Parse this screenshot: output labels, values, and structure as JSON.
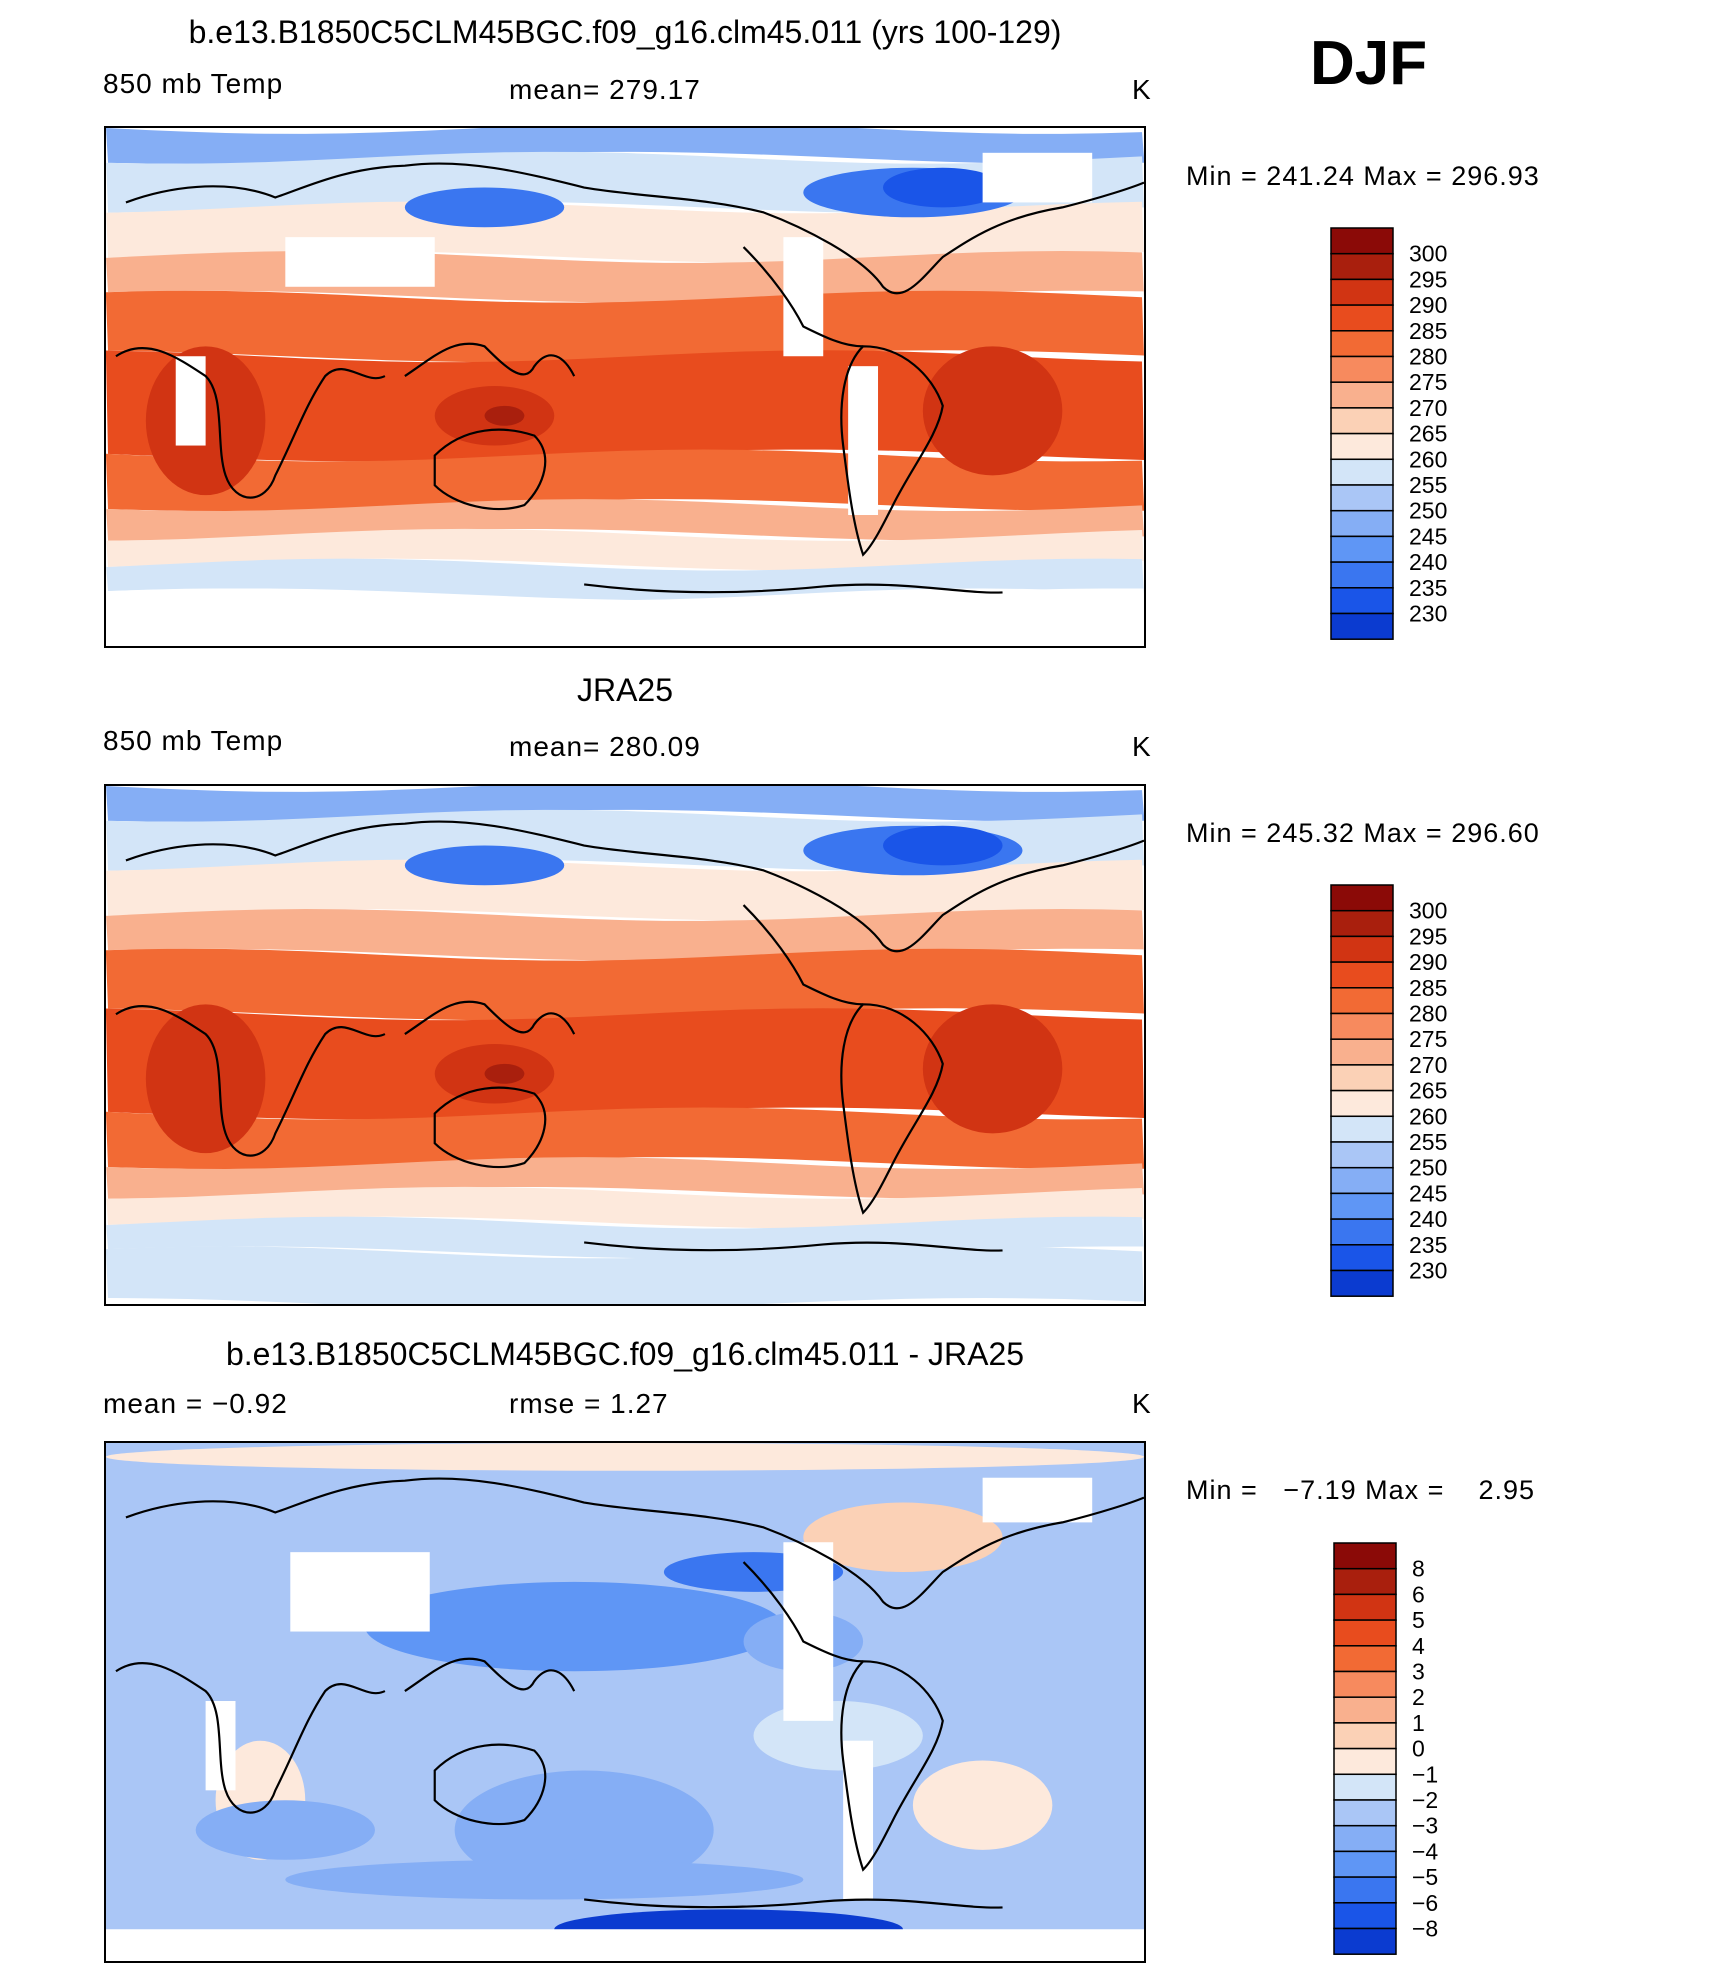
{
  "season": "DJF",
  "colors": {
    "temp_scale": [
      "#ffffff",
      "#0b0f80",
      "#0a27a8",
      "#0b3bd0",
      "#1a55e8",
      "#3a76f0",
      "#5f96f5",
      "#85aef5",
      "#aac6f6",
      "#d3e5f8",
      "#fde9dc",
      "#fbd1b6",
      "#f9b08e",
      "#f78a5e",
      "#f26a34",
      "#e84c1e",
      "#d13413",
      "#a91f0d",
      "#8b0a07"
    ],
    "diff_scale": [
      "#0b0f80",
      "#0a27a8",
      "#0b3bd0",
      "#1a55e8",
      "#3a76f0",
      "#5f96f5",
      "#85aef5",
      "#aac6f6",
      "#d3e5f8",
      "#fde9dc",
      "#fbd1b6",
      "#f9b08e",
      "#f78a5e",
      "#f26a34",
      "#e84c1e",
      "#d13413",
      "#a91f0d",
      "#8b0a07"
    ]
  },
  "panels": [
    {
      "title": "b.e13.B1850C5CLM45BGC.f09_g16.clm45.011 (yrs 100-129)",
      "left": "850 mb Temp",
      "center": "mean=  279.17",
      "right": "K",
      "min_label": "Min",
      "min_value": "241.24",
      "max_label": "Max",
      "max_value": "296.93",
      "colorbar": [
        "300",
        "295",
        "290",
        "285",
        "280",
        "275",
        "270",
        "265",
        "260",
        "255",
        "250",
        "245",
        "240",
        "235",
        "230"
      ],
      "field_kind": "model"
    },
    {
      "title": "JRA25",
      "left": "850 mb Temp",
      "center": "mean=  280.09",
      "right": "K",
      "min_label": "Min",
      "min_value": "245.32",
      "max_label": "Max",
      "max_value": "296.60",
      "colorbar": [
        "300",
        "295",
        "290",
        "285",
        "280",
        "275",
        "270",
        "265",
        "260",
        "255",
        "250",
        "245",
        "240",
        "235",
        "230"
      ],
      "field_kind": "obs"
    },
    {
      "title": "b.e13.B1850C5CLM45BGC.f09_g16.clm45.011 - JRA25",
      "left": "mean =    −0.92",
      "center": "rmse =     1.27",
      "right": "K",
      "min_label": "Min",
      "min_value": "−7.19",
      "max_label": "Max",
      "max_value": "2.95",
      "colorbar": [
        "8",
        "6",
        "5",
        "4",
        "3",
        "2",
        "1",
        "0",
        "−1",
        "−2",
        "−3",
        "−4",
        "−5",
        "−6",
        "−8"
      ],
      "field_kind": "diff"
    }
  ]
}
